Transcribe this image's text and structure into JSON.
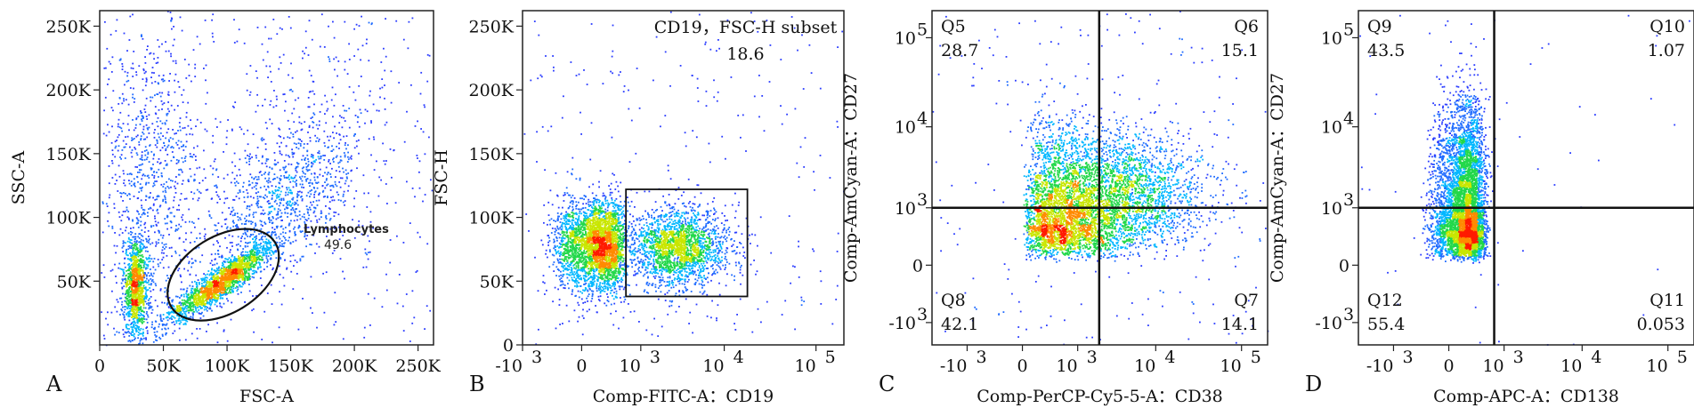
{
  "chart_data": [
    {
      "type": "scatter",
      "panel_letter": "A",
      "xlabel": "FSC-A",
      "ylabel": "SSC-A",
      "xlim": [
        0,
        262144
      ],
      "ylim": [
        0,
        262144
      ],
      "x_ticks": [
        {
          "value": 0,
          "label": "0"
        },
        {
          "value": 50000,
          "label": "50K"
        },
        {
          "value": 100000,
          "label": "100K"
        },
        {
          "value": 150000,
          "label": "150K"
        },
        {
          "value": 200000,
          "label": "200K"
        },
        {
          "value": 250000,
          "label": "250K"
        }
      ],
      "y_ticks": [
        {
          "value": 50000,
          "label": "50K"
        },
        {
          "value": 100000,
          "label": "100K"
        },
        {
          "value": 150000,
          "label": "150K"
        },
        {
          "value": 200000,
          "label": "200K"
        },
        {
          "value": 250000,
          "label": "250K"
        }
      ],
      "gates": [
        {
          "shape": "ellipse",
          "name": "Lymphocytes",
          "percent": "49.6",
          "center": [
            97000,
            55000
          ],
          "radii": [
            48000,
            30000
          ],
          "rotation_deg": -32
        }
      ],
      "populations": [
        {
          "center": [
            95000,
            50000
          ],
          "spread": [
            22000,
            12000
          ],
          "rotation_deg": -30,
          "weight": 0.35
        },
        {
          "center": [
            28000,
            45000
          ],
          "spread": [
            5000,
            20000
          ],
          "rotation_deg": 0,
          "weight": 0.22
        },
        {
          "center": [
            140000,
            110000
          ],
          "spread": [
            30000,
            35000
          ],
          "rotation_deg": -20,
          "weight": 0.18
        },
        {
          "center": [
            40000,
            130000
          ],
          "spread": [
            20000,
            60000
          ],
          "rotation_deg": 0,
          "weight": 0.15
        },
        {
          "center": [
            150000,
            150000
          ],
          "spread": [
            70000,
            70000
          ],
          "rotation_deg": 0,
          "weight": 0.1
        }
      ]
    },
    {
      "type": "scatter",
      "panel_letter": "B",
      "xlabel": "Comp-FITC-A：CD19",
      "ylabel": "FSC-H",
      "xscale": "biexponential",
      "xlim": [
        -1000,
        200000
      ],
      "ylim": [
        0,
        262144
      ],
      "x_ticks": [
        {
          "value": -1000,
          "label": "-10",
          "exp": "3"
        },
        {
          "value": 0,
          "label": "0"
        },
        {
          "value": 1000,
          "label": "10",
          "exp": "3"
        },
        {
          "value": 10000,
          "label": "10",
          "exp": "4"
        },
        {
          "value": 100000,
          "label": "10",
          "exp": "5"
        }
      ],
      "y_ticks": [
        {
          "value": 0,
          "label": "0"
        },
        {
          "value": 50000,
          "label": "50K"
        },
        {
          "value": 100000,
          "label": "100K"
        },
        {
          "value": 150000,
          "label": "150K"
        },
        {
          "value": 200000,
          "label": "200K"
        },
        {
          "value": 250000,
          "label": "250K"
        }
      ],
      "gates": [
        {
          "shape": "rect",
          "name": "CD19，FSC-H subset",
          "percent": "18.6",
          "x_range": [
            600,
            18000
          ],
          "y_range": [
            38000,
            122000
          ]
        }
      ],
      "populations": [
        {
          "center": [
            150,
            78000
          ],
          "spread": [
            200,
            18000
          ],
          "rotation_deg": 0,
          "weight": 0.6
        },
        {
          "center": [
            3000,
            77000
          ],
          "spread": [
            0.28,
            15000
          ],
          "rotation_deg": 0,
          "weight": 0.4,
          "log_spread": true
        }
      ]
    },
    {
      "type": "scatter",
      "panel_letter": "C",
      "xlabel": "Comp-PerCP-Cy5-5-A：CD38",
      "ylabel": "Comp-AmCyan-A：CD27",
      "xscale": "biexponential",
      "yscale": "biexponential",
      "xlim": [
        -3000,
        200000
      ],
      "ylim": [
        -2000,
        200000
      ],
      "x_ticks": [
        {
          "value": -1000,
          "label": "-10",
          "exp": "3"
        },
        {
          "value": 0,
          "label": "0"
        },
        {
          "value": 1000,
          "label": "10",
          "exp": "3"
        },
        {
          "value": 10000,
          "label": "10",
          "exp": "4"
        },
        {
          "value": 100000,
          "label": "10",
          "exp": "5"
        }
      ],
      "y_ticks": [
        {
          "value": -1000,
          "label": "-10",
          "exp": "3"
        },
        {
          "value": 0,
          "label": "0"
        },
        {
          "value": 1000,
          "label": "10",
          "exp": "3"
        },
        {
          "value": 10000,
          "label": "10",
          "exp": "4"
        },
        {
          "value": 100000,
          "label": "10",
          "exp": "5"
        }
      ],
      "quadrant_split": [
        2000,
        1000
      ],
      "quadrants": [
        {
          "name": "Q5",
          "percent": "28.7",
          "pos": "top-left"
        },
        {
          "name": "Q6",
          "percent": "15.1",
          "pos": "top-right"
        },
        {
          "name": "Q8",
          "percent": "42.1",
          "pos": "bottom-left"
        },
        {
          "name": "Q7",
          "percent": "14.1",
          "pos": "bottom-right"
        }
      ],
      "populations": [
        {
          "center": [
            700,
            500
          ],
          "spread": [
            0.55,
            0.35
          ],
          "weight": 0.45,
          "log_spread": true
        },
        {
          "center": [
            900,
            2500
          ],
          "spread": [
            0.55,
            0.35
          ],
          "weight": 0.3,
          "log_spread": true
        },
        {
          "center": [
            6000,
            1600
          ],
          "spread": [
            0.45,
            0.35
          ],
          "weight": 0.25,
          "log_spread": true
        }
      ]
    },
    {
      "type": "scatter",
      "panel_letter": "D",
      "xlabel": "Comp-APC-A：CD138",
      "ylabel": "Comp-AmCyan-A：CD27",
      "xscale": "biexponential",
      "yscale": "biexponential",
      "xlim": [
        -3000,
        200000
      ],
      "ylim": [
        -2000,
        200000
      ],
      "x_ticks": [
        {
          "value": -1000,
          "label": "-10",
          "exp": "3"
        },
        {
          "value": 0,
          "label": "0"
        },
        {
          "value": 1000,
          "label": "10",
          "exp": "3"
        },
        {
          "value": 10000,
          "label": "10",
          "exp": "4"
        },
        {
          "value": 100000,
          "label": "10",
          "exp": "5"
        }
      ],
      "y_ticks": [
        {
          "value": -1000,
          "label": "-10",
          "exp": "3"
        },
        {
          "value": 0,
          "label": "0"
        },
        {
          "value": 1000,
          "label": "10",
          "exp": "3"
        },
        {
          "value": 10000,
          "label": "10",
          "exp": "4"
        },
        {
          "value": 100000,
          "label": "10",
          "exp": "5"
        }
      ],
      "quadrant_split": [
        700,
        1000
      ],
      "quadrants": [
        {
          "name": "Q9",
          "percent": "43.5",
          "pos": "top-left"
        },
        {
          "name": "Q10",
          "percent": "1.07",
          "pos": "top-right"
        },
        {
          "name": "Q12",
          "percent": "55.4",
          "pos": "bottom-left"
        },
        {
          "name": "Q11",
          "percent": "0.053",
          "pos": "bottom-right"
        }
      ],
      "populations": [
        {
          "center": [
            150,
            400
          ],
          "spread": [
            150,
            0.35
          ],
          "weight": 0.55,
          "y_log": true
        },
        {
          "center": [
            150,
            3000
          ],
          "spread": [
            150,
            0.45
          ],
          "weight": 0.45,
          "y_log": true
        }
      ],
      "sparse_points": true
    }
  ]
}
